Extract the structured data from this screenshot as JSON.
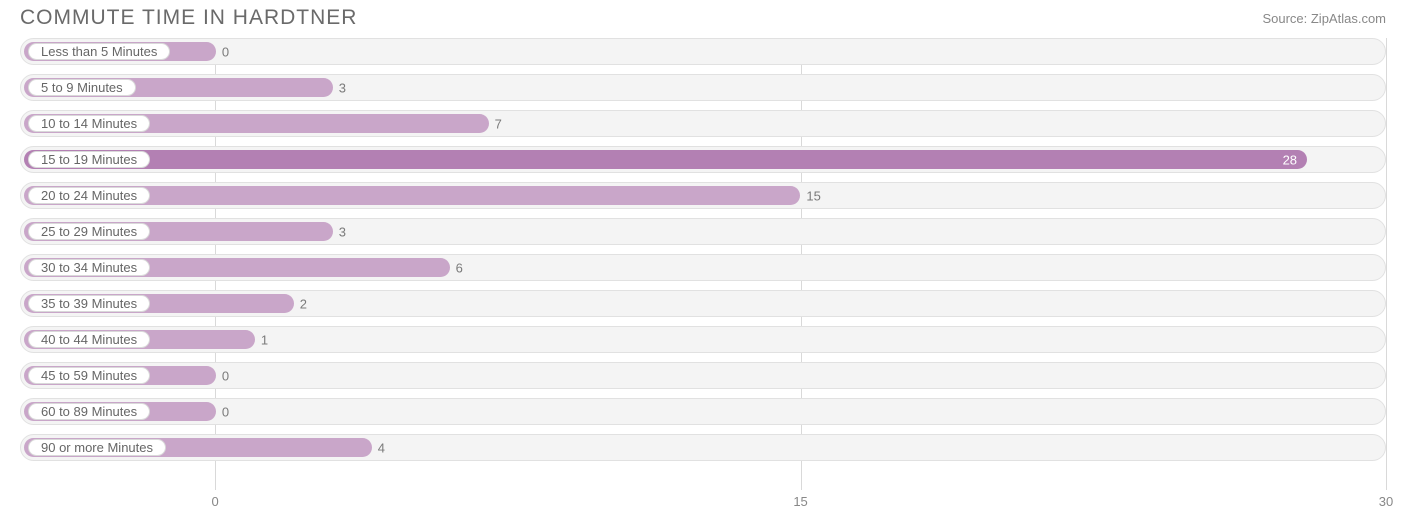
{
  "title": "COMMUTE TIME IN HARDTNER",
  "source": "Source: ZipAtlas.com",
  "chart": {
    "type": "bar-horizontal",
    "bar_color": "#c9a6c9",
    "highlight_bar_color": "#b380b3",
    "track_bg": "#f4f4f4",
    "track_border": "#e1e1e1",
    "grid_color": "#d9d9d9",
    "text_color": "#666666",
    "value_text_inside_color": "#ffffff",
    "value_text_outside_color": "#7a7a7a",
    "x_min": -5,
    "x_max": 30,
    "x_ticks": [
      0,
      15,
      30
    ],
    "bar_origin": -5,
    "label_pill_approx_end_x": -0.7,
    "rows": [
      {
        "label": "Less than 5 Minutes",
        "value": 0,
        "highlight": false
      },
      {
        "label": "5 to 9 Minutes",
        "value": 3,
        "highlight": false
      },
      {
        "label": "10 to 14 Minutes",
        "value": 7,
        "highlight": false
      },
      {
        "label": "15 to 19 Minutes",
        "value": 28,
        "highlight": true
      },
      {
        "label": "20 to 24 Minutes",
        "value": 15,
        "highlight": false
      },
      {
        "label": "25 to 29 Minutes",
        "value": 3,
        "highlight": false
      },
      {
        "label": "30 to 34 Minutes",
        "value": 6,
        "highlight": false
      },
      {
        "label": "35 to 39 Minutes",
        "value": 2,
        "highlight": false
      },
      {
        "label": "40 to 44 Minutes",
        "value": 1,
        "highlight": false
      },
      {
        "label": "45 to 59 Minutes",
        "value": 0,
        "highlight": false
      },
      {
        "label": "60 to 89 Minutes",
        "value": 0,
        "highlight": false
      },
      {
        "label": "90 or more Minutes",
        "value": 4,
        "highlight": false
      }
    ]
  }
}
